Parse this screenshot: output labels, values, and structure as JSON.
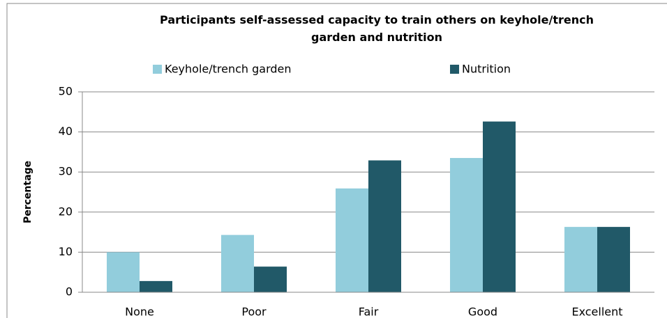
{
  "chart_data": {
    "type": "bar",
    "title": "Participants self-assessed capacity to train others on keyhole/trench garden and nutrition",
    "y_label": "Percentage",
    "categories": [
      "None",
      "Poor",
      "Fair",
      "Good",
      "Excellent"
    ],
    "series": [
      {
        "name": "Keyhole/trench garden",
        "color": "#92cddc",
        "values": [
          10,
          14.3,
          25.9,
          33.5,
          16.3
        ]
      },
      {
        "name": "Nutrition",
        "color": "#215968",
        "values": [
          2.8,
          6.4,
          32.9,
          42.6,
          16.3
        ]
      }
    ],
    "ylim": [
      0,
      50
    ],
    "yticks": [
      0,
      10,
      20,
      30,
      40,
      50
    ],
    "grid": true,
    "legend": "top"
  }
}
